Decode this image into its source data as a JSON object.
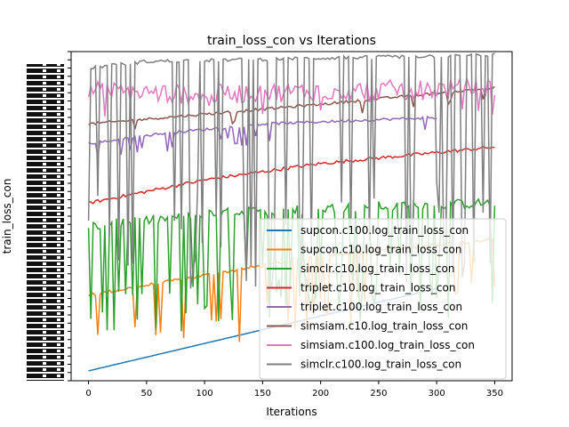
{
  "chart_data": {
    "type": "line",
    "title": "train_loss_con vs Iterations",
    "xlabel": "Iterations",
    "ylabel": "train_loss_con",
    "xlim": [
      -15,
      365
    ],
    "ylim": [
      0,
      100
    ],
    "xticks": [
      0,
      50,
      100,
      150,
      200,
      250,
      300,
      350
    ],
    "legend_position": "lower-right",
    "grid": false,
    "series": [
      {
        "name": "supcon.c100.log_train_loss_con",
        "color": "#1f77b4",
        "x_max": 300,
        "trend": [
          [
            0,
            3
          ],
          [
            300,
            28
          ]
        ],
        "noise": 0,
        "spike_prob": 0,
        "spike_depth": 0
      },
      {
        "name": "supcon.c10.log_train_loss_con",
        "color": "#ff7f0e",
        "x_max": 350,
        "trend": [
          [
            0,
            26
          ],
          [
            100,
            32
          ],
          [
            200,
            38
          ],
          [
            350,
            43
          ]
        ],
        "noise": 0.5,
        "spike_prob": 0.12,
        "spike_depth": 22
      },
      {
        "name": "simclr.c10.log_train_loss_con",
        "color": "#2ca02c",
        "x_max": 350,
        "trend": [
          [
            0,
            47
          ],
          [
            120,
            51
          ],
          [
            250,
            53
          ],
          [
            350,
            54
          ]
        ],
        "noise": 1.5,
        "spike_prob": 0.3,
        "spike_depth": 35
      },
      {
        "name": "triplet.c10.log_train_loss_con",
        "color": "#d62728",
        "x_max": 350,
        "trend": [
          [
            0,
            54
          ],
          [
            100,
            61
          ],
          [
            200,
            66
          ],
          [
            350,
            71
          ]
        ],
        "noise": 0.5,
        "spike_prob": 0,
        "spike_depth": 0
      },
      {
        "name": "triplet.c100.log_train_loss_con",
        "color": "#9467bd",
        "x_max": 300,
        "trend": [
          [
            0,
            72
          ],
          [
            60,
            75
          ],
          [
            150,
            78
          ],
          [
            300,
            80
          ]
        ],
        "noise": 0.4,
        "spike_prob": 0.08,
        "spike_depth": 6
      },
      {
        "name": "simsiam.c10.log_train_loss_con",
        "color": "#8c564b",
        "x_max": 350,
        "trend": [
          [
            0,
            78
          ],
          [
            100,
            81
          ],
          [
            200,
            84
          ],
          [
            350,
            89
          ]
        ],
        "noise": 0.4,
        "spike_prob": 0.05,
        "spike_depth": 4
      },
      {
        "name": "simsiam.c100.log_train_loss_con",
        "color": "#e377c2",
        "x_max": 350,
        "trend": [
          [
            0,
            88
          ],
          [
            100,
            87
          ],
          [
            200,
            88
          ],
          [
            350,
            89
          ]
        ],
        "noise": 3,
        "spike_prob": 0.1,
        "spike_depth": 6
      },
      {
        "name": "simclr.c100.log_train_loss_con",
        "color": "#7f7f7f",
        "x_max": 350,
        "trend": [
          [
            0,
            95
          ],
          [
            50,
            97
          ],
          [
            200,
            98
          ],
          [
            350,
            99
          ]
        ],
        "noise": 0.5,
        "spike_prob": 0.28,
        "spike_depth": 70
      }
    ]
  }
}
